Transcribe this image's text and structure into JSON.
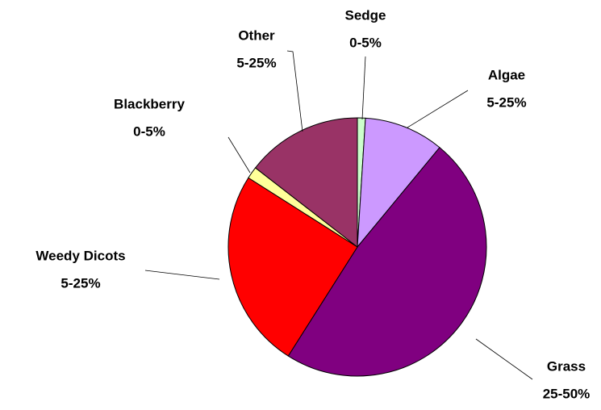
{
  "chart_data": {
    "type": "pie",
    "categories": [
      "Sedge",
      "Algae",
      "Grass",
      "Weedy Dicots",
      "Blackberry",
      "Other"
    ],
    "values": [
      1,
      10,
      48,
      25,
      1.5,
      14.5
    ],
    "range_labels": [
      "0-5%",
      "5-25%",
      "25-50%",
      "5-25%",
      "0-5%",
      "5-25%"
    ],
    "colors": [
      "#ccffcc",
      "#cc99ff",
      "#800080",
      "#ff0000",
      "#ffff99",
      "#993366"
    ]
  }
}
